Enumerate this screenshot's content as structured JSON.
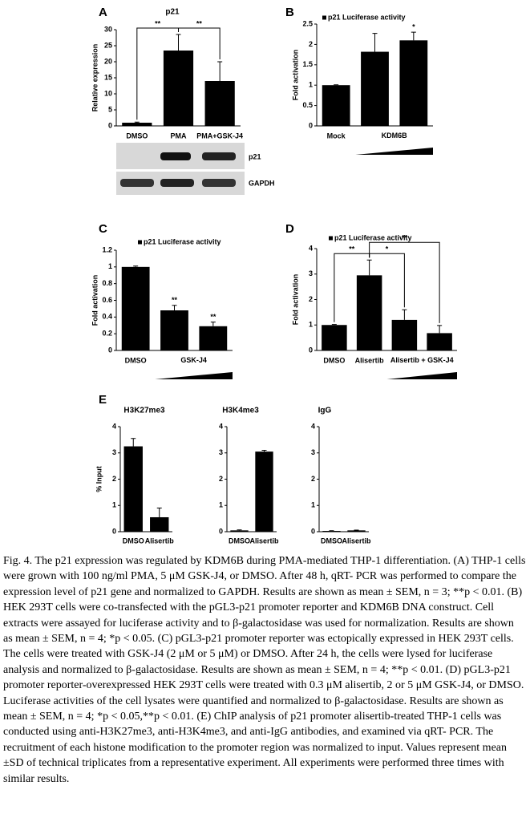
{
  "chart_data": [
    {
      "type": "bar",
      "panel": "A",
      "title": "p21",
      "ylabel": "Relative expression",
      "categories": [
        "DMSO",
        "PMA",
        "PMA+GSK-J4"
      ],
      "series": [
        {
          "color": "#000000",
          "values": [
            1,
            23.5,
            14
          ],
          "errors": [
            0.2,
            5,
            6
          ]
        }
      ],
      "ylim": [
        0,
        30
      ],
      "yticks": [
        0,
        5,
        10,
        15,
        20,
        25,
        30
      ],
      "annotations": [
        "**",
        "**"
      ],
      "blot_labels": [
        "p21",
        "GAPDH"
      ]
    },
    {
      "type": "bar",
      "panel": "B",
      "ylabel": "Fold activation",
      "categories": [
        "Mock",
        null,
        null
      ],
      "group_label": "KDM6B",
      "series": [
        {
          "name": "p21 Luciferase activity",
          "color": "#000000",
          "values": [
            1.0,
            1.82,
            2.1
          ],
          "errors": [
            0.01,
            0.45,
            0.2
          ]
        }
      ],
      "ylim": [
        0,
        2.5
      ],
      "yticks": [
        0,
        0.5,
        1,
        1.5,
        2,
        2.5
      ],
      "annotations": [
        "*"
      ]
    },
    {
      "type": "bar",
      "panel": "C",
      "ylabel": "Fold activation",
      "categories": [
        "DMSO",
        null,
        null
      ],
      "group_label": "GSK-J4",
      "series": [
        {
          "name": "p21 Luciferase activity",
          "color": "#000000",
          "values": [
            1.0,
            0.48,
            0.29
          ],
          "errors": [
            0.01,
            0.06,
            0.05
          ]
        }
      ],
      "ylim": [
        0,
        1.2
      ],
      "yticks": [
        0,
        0.2,
        0.4,
        0.6,
        0.8,
        1,
        1.2
      ],
      "annotations": [
        "**",
        "**"
      ]
    },
    {
      "type": "bar",
      "panel": "D",
      "ylabel": "Fold activation",
      "categories": [
        "DMSO",
        "Alisertib",
        null,
        null
      ],
      "group_label": "Alisertib + GSK-J4",
      "series": [
        {
          "name": "p21 Luciferase activity",
          "color": "#000000",
          "values": [
            1.0,
            2.95,
            1.2,
            0.68
          ],
          "errors": [
            0.02,
            0.6,
            0.4,
            0.3
          ]
        }
      ],
      "ylim": [
        0,
        4
      ],
      "yticks": [
        0,
        1,
        2,
        3,
        4
      ],
      "annotations": [
        "**",
        "*",
        "**"
      ]
    },
    {
      "type": "bar",
      "panel": "E",
      "title": "H3K27me3",
      "ylabel": "% Input",
      "categories": [
        "DMSO",
        "Alisertib"
      ],
      "series": [
        {
          "color": "#000000",
          "values": [
            3.25,
            0.55
          ],
          "errors": [
            0.3,
            0.35
          ]
        }
      ],
      "ylim": [
        0,
        4
      ],
      "yticks": [
        0,
        1,
        2,
        3,
        4
      ]
    },
    {
      "type": "bar",
      "title": "H3K4me3",
      "categories": [
        "DMSO",
        "Alisertib"
      ],
      "series": [
        {
          "color": "#000000",
          "values": [
            0.05,
            3.05
          ],
          "errors": [
            0.02,
            0.05
          ]
        }
      ],
      "ylim": [
        0,
        4
      ],
      "yticks": [
        0,
        1,
        2,
        3,
        4
      ]
    },
    {
      "type": "bar",
      "title": "IgG",
      "categories": [
        "DMSO",
        "Alisertib"
      ],
      "series": [
        {
          "color": "#000000",
          "values": [
            0.03,
            0.05
          ],
          "errors": [
            0.01,
            0.01
          ]
        }
      ],
      "ylim": [
        0,
        4
      ],
      "yticks": [
        0,
        1,
        2,
        3,
        4
      ]
    }
  ],
  "caption": "Fig. 4. The p21 expression was regulated by KDM6B during PMA-mediated THP-1 differentiation. (A) THP-1 cells were grown with 100 ng/ml PMA, 5 μM GSK-J4, or DMSO. After 48 h, qRT- PCR was performed to compare the expression level of p21 gene and normalized to GAPDH. Results are shown as mean ± SEM, n = 3; **p < 0.01. (B) HEK 293T cells were co-transfected with the pGL3-p21 promoter reporter and KDM6B DNA construct. Cell extracts were assayed for luciferase activity and to β-galactosidase was used for normalization. Results are shown as mean ± SEM, n = 4; *p < 0.05. (C) pGL3-p21 promoter reporter was ectopically expressed in HEK 293T cells. The cells were treated with GSK-J4 (2 μM or 5 μM) or DMSO. After 24 h, the cells were lysed for luciferase analysis and normalized to β-galactosidase. Results are shown as mean ± SEM, n = 4; **p < 0.01. (D) pGL3-p21 promoter reporter-overexpressed HEK 293T cells were treated with 0.3 μM alisertib, 2 or 5 μM GSK-J4, or DMSO. Luciferase activities of the cell lysates were quantified and normalized to β-galactosidase. Results are shown as mean ± SEM, n = 4; *p < 0.05,**p < 0.01. (E) ChIP analysis of p21 promoter alisertib-treated THP-1 cells was conducted using anti-H3K27me3, anti-H3K4me3, and anti-IgG antibodies, and examined via qRT- PCR. The recruitment of each histone modification to the promoter region was normalized to input. Values represent mean ±SD of technical triplicates from a representative experiment. All experiments were performed three times with similar results."
}
